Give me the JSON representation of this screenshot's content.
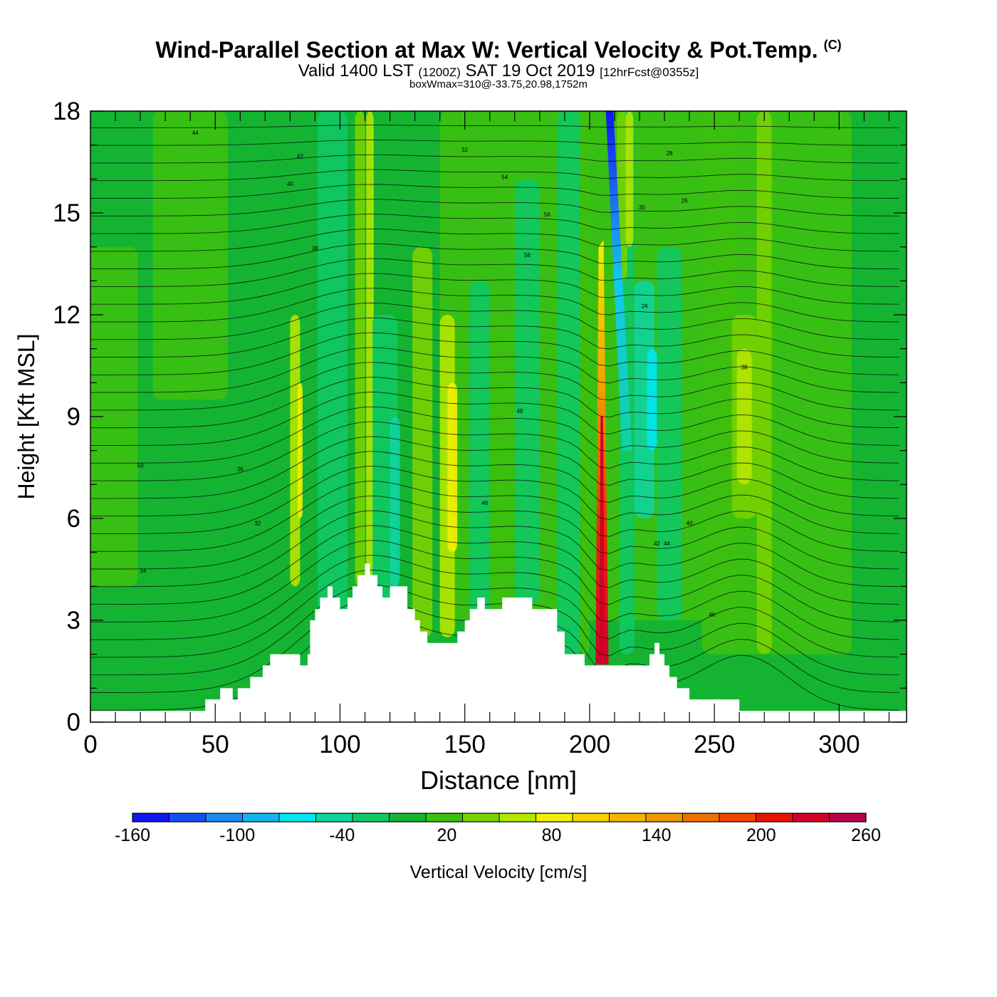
{
  "header": {
    "title": "Wind-Parallel Section at Max W: Vertical Velocity & Pot.Temp.",
    "copyright": "(C)",
    "valid_prefix": "Valid 1400 LST",
    "valid_utc": "(1200Z)",
    "valid_date": "SAT 19 Oct 2019",
    "forecast": "[12hrFcst@0355z]",
    "box_max": "boxWmax=310@-33.75,20.98,1752m"
  },
  "chart_data": {
    "type": "heatmap",
    "xlabel": "Distance [nm]",
    "ylabel": "Height [Kft MSL]",
    "xlim": [
      0,
      327
    ],
    "ylim": [
      0,
      18
    ],
    "x_ticks": [
      0,
      50,
      100,
      150,
      200,
      250,
      300
    ],
    "y_ticks": [
      0,
      3,
      6,
      9,
      12,
      15,
      18
    ],
    "colorbar": {
      "label": "Vertical Velocity [cm/s]",
      "tick_labels": [
        "-160",
        "-100",
        "-40",
        "20",
        "80",
        "140",
        "200",
        "260"
      ],
      "levels": [
        -160,
        -140,
        -120,
        -100,
        -80,
        -60,
        -40,
        -20,
        0,
        20,
        40,
        60,
        80,
        100,
        120,
        140,
        160,
        180,
        200,
        220,
        240,
        260
      ],
      "colors": [
        "#1414f0",
        "#1450f0",
        "#1a8cf0",
        "#14b4f0",
        "#00e6f0",
        "#10d4a0",
        "#10c864",
        "#14b432",
        "#3cc010",
        "#78d200",
        "#b4e600",
        "#f0f000",
        "#f5d200",
        "#f5b400",
        "#f09600",
        "#f07000",
        "#f04600",
        "#e61400",
        "#d20028",
        "#b40050"
      ]
    },
    "updraft_max_cm_s": 310,
    "updraft_max_location_nm": 205,
    "downdraft_location_nm": 208,
    "terrain_kft": [
      [
        0,
        0.33
      ],
      [
        45,
        0.33
      ],
      [
        46,
        0.67
      ],
      [
        52,
        1
      ],
      [
        57,
        0.67
      ],
      [
        59,
        1
      ],
      [
        64,
        1.33
      ],
      [
        69,
        1.67
      ],
      [
        72,
        2
      ],
      [
        82,
        2
      ],
      [
        84,
        1.67
      ],
      [
        87,
        2
      ],
      [
        88,
        3
      ],
      [
        90,
        3.33
      ],
      [
        92,
        3.67
      ],
      [
        95,
        4
      ],
      [
        97,
        3.67
      ],
      [
        100,
        3.33
      ],
      [
        103,
        3.67
      ],
      [
        105,
        4
      ],
      [
        107,
        4.33
      ],
      [
        110,
        4.67
      ],
      [
        112,
        4.33
      ],
      [
        115,
        4
      ],
      [
        117,
        3.67
      ],
      [
        120,
        4
      ],
      [
        125,
        4
      ],
      [
        127,
        3.33
      ],
      [
        130,
        3
      ],
      [
        132,
        2.67
      ],
      [
        135,
        2.33
      ],
      [
        145,
        2.33
      ],
      [
        147,
        2.67
      ],
      [
        150,
        3
      ],
      [
        152,
        3.33
      ],
      [
        155,
        3.67
      ],
      [
        158,
        3.33
      ],
      [
        160,
        3.33
      ],
      [
        165,
        3.67
      ],
      [
        175,
        3.67
      ],
      [
        177,
        3.33
      ],
      [
        185,
        3.33
      ],
      [
        187,
        2.67
      ],
      [
        190,
        2
      ],
      [
        195,
        2
      ],
      [
        198,
        1.67
      ],
      [
        222,
        1.67
      ],
      [
        224,
        2
      ],
      [
        226,
        2.33
      ],
      [
        228,
        2
      ],
      [
        230,
        1.67
      ],
      [
        232,
        1.33
      ],
      [
        235,
        1
      ],
      [
        240,
        0.67
      ],
      [
        248,
        0.67
      ],
      [
        255,
        0.67
      ],
      [
        258,
        0.67
      ],
      [
        260,
        0.33
      ],
      [
        327,
        0.33
      ]
    ],
    "contour_labels": [
      "44",
      "42",
      "40",
      "38",
      "36",
      "50",
      "52",
      "54",
      "56",
      "58",
      "48",
      "46",
      "34",
      "32",
      "30",
      "28",
      "26",
      "24",
      "38",
      "40",
      "42",
      "44",
      "46"
    ]
  }
}
